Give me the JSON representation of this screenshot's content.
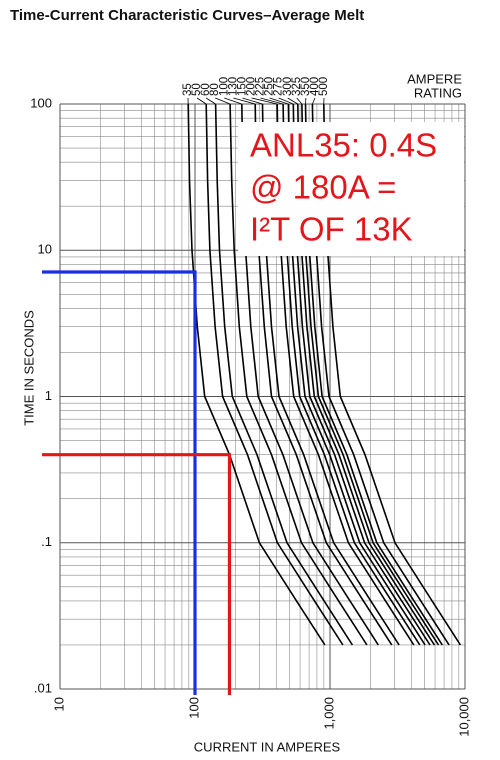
{
  "chart_data": {
    "type": "line",
    "title": "Time-Current Characteristic Curves–Average Melt",
    "x_label": "CURRENT IN AMPERES",
    "y_label": "TIME IN SECONDS",
    "legend_title": [
      "AMPERE",
      "RATING"
    ],
    "log_x": true,
    "log_y": true,
    "grid": true,
    "xlim": [
      10,
      10000
    ],
    "xticks": [
      10,
      100,
      {
        "value": 1000,
        "label": "1,000"
      },
      {
        "value": 10000,
        "label": "10,000"
      }
    ],
    "ylim": [
      0.01,
      100
    ],
    "yticks": [
      {
        "value": 0.01,
        "label": ".01"
      },
      {
        "value": 0.1,
        "label": ".1"
      },
      1,
      10,
      100
    ],
    "series": [
      {
        "name": "35",
        "color": "#000000",
        "x": [
          89,
          91,
          95,
          104,
          118,
          180,
          300,
          565,
          916
        ],
        "values": [
          100,
          30,
          10,
          3,
          1,
          0.4,
          0.1,
          0.04,
          0.02
        ]
      },
      {
        "name": "50",
        "color": "#000000",
        "x": [
          121,
          124,
          129,
          141,
          160,
          245,
          408,
          768,
          1246
        ],
        "values": [
          100,
          30,
          10,
          3,
          1,
          0.4,
          0.1,
          0.04,
          0.02
        ]
      },
      {
        "name": "60",
        "color": "#000000",
        "x": [
          142,
          146,
          152,
          166,
          189,
          288,
          480,
          904,
          1466
        ],
        "values": [
          100,
          30,
          10,
          3,
          1,
          0.4,
          0.1,
          0.04,
          0.02
        ]
      },
      {
        "name": "80",
        "color": "#000000",
        "x": [
          182,
          187,
          195,
          213,
          242,
          369,
          615,
          1158,
          1878
        ],
        "values": [
          100,
          30,
          10,
          3,
          1,
          0.4,
          0.1,
          0.04,
          0.02
        ]
      },
      {
        "name": "100",
        "color": "#000000",
        "x": [
          222,
          227,
          237,
          259,
          294,
          448,
          747,
          1407,
          2281
        ],
        "values": [
          100,
          30,
          10,
          3,
          1,
          0.4,
          0.1,
          0.04,
          0.02
        ]
      },
      {
        "name": "130",
        "color": "#000000",
        "x": [
          279,
          285,
          297,
          326,
          369,
          563,
          939,
          1768,
          2867
        ],
        "values": [
          100,
          30,
          10,
          3,
          1,
          0.4,
          0.1,
          0.04,
          0.02
        ]
      },
      {
        "name": "150",
        "color": "#000000",
        "x": [
          316,
          323,
          337,
          369,
          419,
          639,
          1065,
          2006,
          3252
        ],
        "values": [
          100,
          30,
          10,
          3,
          1,
          0.4,
          0.1,
          0.04,
          0.02
        ]
      },
      {
        "name": "200",
        "color": "#000000",
        "x": [
          406,
          415,
          433,
          474,
          538,
          821,
          1368,
          2576,
          4177
        ],
        "values": [
          100,
          30,
          10,
          3,
          1,
          0.4,
          0.1,
          0.04,
          0.02
        ]
      },
      {
        "name": "225",
        "color": "#000000",
        "x": [
          449,
          460,
          480,
          525,
          596,
          909,
          1515,
          2853,
          4626
        ],
        "values": [
          100,
          30,
          10,
          3,
          1,
          0.4,
          0.1,
          0.04,
          0.02
        ]
      },
      {
        "name": "250",
        "color": "#000000",
        "x": [
          492,
          503,
          525,
          575,
          653,
          995,
          1659,
          3124,
          5065
        ],
        "values": [
          100,
          30,
          10,
          3,
          1,
          0.4,
          0.1,
          0.04,
          0.02
        ]
      },
      {
        "name": "275",
        "color": "#000000",
        "x": [
          535,
          547,
          571,
          625,
          709,
          1082,
          1803,
          3396,
          5505
        ],
        "values": [
          100,
          30,
          10,
          3,
          1,
          0.4,
          0.1,
          0.04,
          0.02
        ]
      },
      {
        "name": "300",
        "color": "#000000",
        "x": [
          577,
          590,
          616,
          674,
          765,
          1166,
          1944,
          3661,
          5936
        ],
        "values": [
          100,
          30,
          10,
          3,
          1,
          0.4,
          0.1,
          0.04,
          0.02
        ]
      },
      {
        "name": "325",
        "color": "#000000",
        "x": [
          619,
          632,
          660,
          723,
          820,
          1251,
          2085,
          3927,
          6366
        ],
        "values": [
          100,
          30,
          10,
          3,
          1,
          0.4,
          0.1,
          0.04,
          0.02
        ]
      },
      {
        "name": "350",
        "color": "#000000",
        "x": [
          659,
          674,
          704,
          771,
          874,
          1334,
          2223,
          4187,
          6788
        ],
        "values": [
          100,
          30,
          10,
          3,
          1,
          0.4,
          0.1,
          0.04,
          0.02
        ]
      },
      {
        "name": "400",
        "color": "#000000",
        "x": [
          741,
          758,
          791,
          866,
          983,
          1499,
          2499,
          4706,
          7630
        ],
        "values": [
          100,
          30,
          10,
          3,
          1,
          0.4,
          0.1,
          0.04,
          0.02
        ]
      },
      {
        "name": "500",
        "color": "#000000",
        "x": [
          899,
          919,
          960,
          1050,
          1192,
          1818,
          3030,
          5707,
          9252
        ],
        "values": [
          100,
          30,
          10,
          3,
          1,
          0.4,
          0.1,
          0.04,
          0.02
        ]
      }
    ],
    "reference_lines": [
      {
        "color": "#1a2ee6",
        "x": 100,
        "y": 7.1
      },
      {
        "color": "#e3161b",
        "x": 180,
        "y": 0.4
      }
    ],
    "annotation": [
      "ANL35: 0.4S",
      "@ 180A =",
      "I²T OF 13K"
    ]
  }
}
